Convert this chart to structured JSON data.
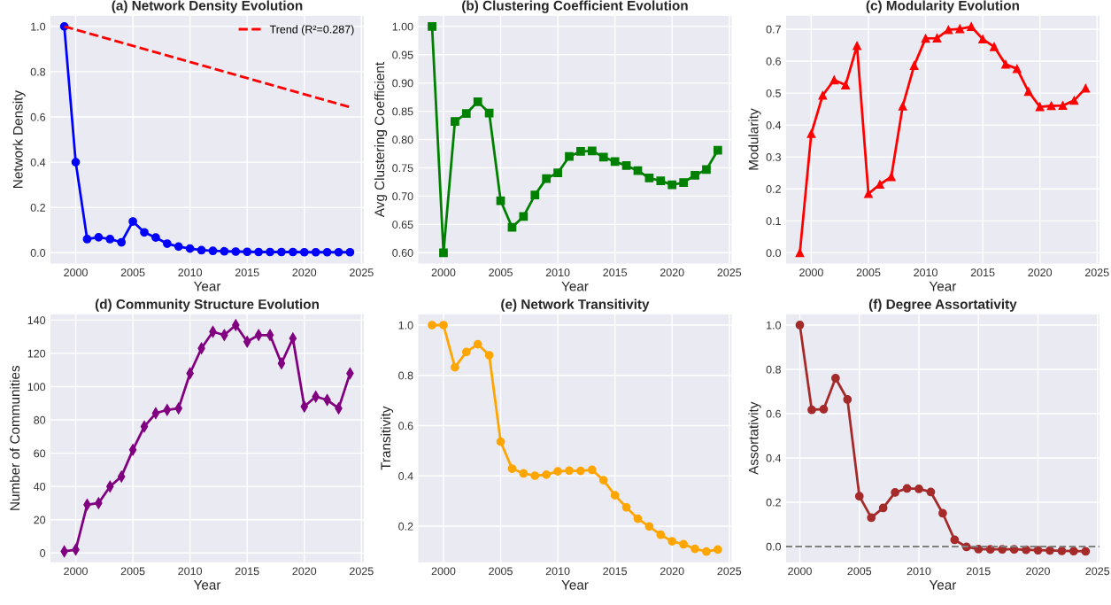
{
  "chart_data": [
    {
      "type": "line",
      "title": "(a) Network Density Evolution",
      "xlabel": "Year",
      "ylabel": "Network Density",
      "x": [
        1999,
        2000,
        2001,
        2002,
        2003,
        2004,
        2005,
        2006,
        2007,
        2008,
        2009,
        2010,
        2011,
        2012,
        2013,
        2014,
        2015,
        2016,
        2017,
        2018,
        2019,
        2020,
        2021,
        2022,
        2023,
        2024
      ],
      "xlim": [
        1997.75,
        2025.25
      ],
      "xticks": [
        2000,
        2005,
        2010,
        2015,
        2020,
        2025
      ],
      "ylim": [
        -0.05,
        1.05
      ],
      "yticks": [
        {
          "value": 0,
          "label": "0.0"
        },
        0.2,
        0.4,
        0.6,
        0.8,
        {
          "value": 1,
          "label": "1.0"
        }
      ],
      "grid": true,
      "legend": "top right",
      "marker": "circle",
      "line_style": "solid",
      "series": [
        {
          "color": "#0000ff",
          "values": [
            1.0,
            0.4,
            0.06,
            0.068,
            0.06,
            0.046,
            0.138,
            0.09,
            0.067,
            0.04,
            0.027,
            0.018,
            0.011,
            0.008,
            0.006,
            0.005,
            0.004,
            0.003,
            0.003,
            0.003,
            0.003,
            0.002,
            0.002,
            0.002,
            0.002,
            0.002
          ]
        },
        {
          "name": "Trend (R²=0.287)",
          "type": "line",
          "color": "#ff0000",
          "marker": "none",
          "line_style": "dashed",
          "x": [
            1999,
            2024
          ],
          "values": [
            1.0,
            0.643
          ]
        }
      ]
    },
    {
      "type": "line",
      "title": "(b) Clustering Coefficient Evolution",
      "xlabel": "Year",
      "ylabel": "Avg Clustering Coefficient",
      "x": [
        1999,
        2000,
        2001,
        2002,
        2003,
        2004,
        2005,
        2006,
        2007,
        2008,
        2009,
        2010,
        2011,
        2012,
        2013,
        2014,
        2015,
        2016,
        2017,
        2018,
        2019,
        2020,
        2021,
        2022,
        2023,
        2024
      ],
      "xlim": [
        1997.75,
        2025.25
      ],
      "xticks": [
        2000,
        2005,
        2010,
        2015,
        2020,
        2025
      ],
      "ylim": [
        0.58,
        1.02
      ],
      "yticks": [
        {
          "value": 0.6,
          "label": "0.60"
        },
        {
          "value": 0.65,
          "label": "0.65"
        },
        {
          "value": 0.7,
          "label": "0.70"
        },
        {
          "value": 0.75,
          "label": "0.75"
        },
        {
          "value": 0.8,
          "label": "0.80"
        },
        {
          "value": 0.85,
          "label": "0.85"
        },
        {
          "value": 0.9,
          "label": "0.90"
        },
        {
          "value": 0.95,
          "label": "0.95"
        },
        {
          "value": 1.0,
          "label": "1.00"
        }
      ],
      "grid": true,
      "marker": "square",
      "line_style": "solid",
      "series": [
        {
          "color": "#008000",
          "values": [
            1.0,
            0.6,
            0.832,
            0.846,
            0.867,
            0.847,
            0.692,
            0.645,
            0.664,
            0.702,
            0.731,
            0.741,
            0.77,
            0.779,
            0.78,
            0.769,
            0.761,
            0.754,
            0.745,
            0.732,
            0.727,
            0.72,
            0.724,
            0.737,
            0.747,
            0.781
          ]
        }
      ]
    },
    {
      "type": "line",
      "title": "(c) Modularity Evolution",
      "xlabel": "Year",
      "ylabel": "Modularity",
      "x": [
        1999,
        2000,
        2001,
        2002,
        2003,
        2004,
        2005,
        2006,
        2007,
        2008,
        2009,
        2010,
        2011,
        2012,
        2013,
        2014,
        2015,
        2016,
        2017,
        2018,
        2019,
        2020,
        2021,
        2022,
        2023,
        2024
      ],
      "xlim": [
        1997.75,
        2025.25
      ],
      "xticks": [
        2000,
        2005,
        2010,
        2015,
        2020,
        2025
      ],
      "ylim": [
        -0.035,
        0.744
      ],
      "yticks": [
        {
          "value": 0,
          "label": "0.0"
        },
        0.1,
        0.2,
        0.3,
        0.4,
        0.5,
        0.6,
        0.7
      ],
      "grid": true,
      "marker": "triangle",
      "line_style": "solid",
      "series": [
        {
          "color": "#ff0000",
          "values": [
            0.0,
            0.373,
            0.493,
            0.541,
            0.525,
            0.648,
            0.185,
            0.214,
            0.238,
            0.459,
            0.586,
            0.671,
            0.672,
            0.698,
            0.701,
            0.708,
            0.669,
            0.645,
            0.59,
            0.576,
            0.505,
            0.457,
            0.46,
            0.461,
            0.477,
            0.515
          ]
        }
      ]
    },
    {
      "type": "line",
      "title": "(d) Community Structure Evolution",
      "xlabel": "Year",
      "ylabel": "Number of Communities",
      "x": [
        1999,
        2000,
        2001,
        2002,
        2003,
        2004,
        2005,
        2006,
        2007,
        2008,
        2009,
        2010,
        2011,
        2012,
        2013,
        2014,
        2015,
        2016,
        2017,
        2018,
        2019,
        2020,
        2021,
        2022,
        2023,
        2024
      ],
      "xlim": [
        1997.75,
        2025.25
      ],
      "xticks": [
        2000,
        2005,
        2010,
        2015,
        2020,
        2025
      ],
      "ylim": [
        -5.8,
        143.8
      ],
      "yticks": [
        0,
        20,
        40,
        60,
        80,
        100,
        120,
        140
      ],
      "grid": true,
      "marker": "diamond",
      "line_style": "solid",
      "series": [
        {
          "color": "#800080",
          "values": [
            1,
            2,
            29,
            30,
            40,
            46,
            62,
            76,
            84,
            86,
            87,
            108,
            123,
            133,
            131,
            137,
            127,
            131,
            131,
            114,
            129,
            88,
            94,
            92,
            87,
            108
          ]
        }
      ]
    },
    {
      "type": "line",
      "title": "(e) Network Transitivity",
      "xlabel": "Year",
      "ylabel": "Transitivity",
      "x": [
        1999,
        2000,
        2001,
        2002,
        2003,
        2004,
        2005,
        2006,
        2007,
        2008,
        2009,
        2010,
        2011,
        2012,
        2013,
        2014,
        2015,
        2016,
        2017,
        2018,
        2019,
        2020,
        2021,
        2022,
        2023,
        2024
      ],
      "xlim": [
        1997.75,
        2025.25
      ],
      "xticks": [
        2000,
        2005,
        2010,
        2015,
        2020,
        2025
      ],
      "ylim": [
        0.055,
        1.045
      ],
      "yticks": [
        0.2,
        0.4,
        0.6,
        0.8,
        {
          "value": 1,
          "label": "1.0"
        }
      ],
      "grid": true,
      "marker": "circle",
      "line_style": "solid",
      "series": [
        {
          "color": "#ffa500",
          "values": [
            1.0,
            1.0,
            0.832,
            0.893,
            0.924,
            0.88,
            0.536,
            0.429,
            0.41,
            0.401,
            0.405,
            0.418,
            0.421,
            0.42,
            0.424,
            0.383,
            0.323,
            0.275,
            0.23,
            0.199,
            0.166,
            0.14,
            0.128,
            0.11,
            0.099,
            0.107
          ]
        }
      ]
    },
    {
      "type": "line",
      "title": "(f) Degree Assortativity",
      "xlabel": "Year",
      "ylabel": "Assortativity",
      "x": [
        2000,
        2001,
        2002,
        2003,
        2004,
        2005,
        2006,
        2007,
        2008,
        2009,
        2010,
        2011,
        2012,
        2013,
        2014,
        2015,
        2016,
        2017,
        2018,
        2019,
        2020,
        2021,
        2022,
        2023,
        2024
      ],
      "xlim": [
        1998.8,
        2025.2
      ],
      "xticks": [
        2000,
        2005,
        2010,
        2015,
        2020,
        2025
      ],
      "ylim": [
        -0.073,
        1.051
      ],
      "yticks": [
        {
          "value": 0,
          "label": "0.0"
        },
        0.2,
        0.4,
        0.6,
        0.8,
        {
          "value": 1,
          "label": "1.0"
        }
      ],
      "grid": true,
      "marker": "circle",
      "line_style": "solid",
      "ref_lines": [
        {
          "axis": "y",
          "value": 0,
          "color": "#808080",
          "line_style": "dashed"
        }
      ],
      "series": [
        {
          "color": "#a52a2a",
          "values": [
            1.0,
            0.617,
            0.62,
            0.76,
            0.664,
            0.227,
            0.13,
            0.174,
            0.244,
            0.262,
            0.26,
            0.246,
            0.15,
            0.03,
            -0.002,
            -0.012,
            -0.013,
            -0.013,
            -0.013,
            -0.015,
            -0.017,
            -0.018,
            -0.02,
            -0.021,
            -0.022
          ]
        }
      ]
    }
  ]
}
